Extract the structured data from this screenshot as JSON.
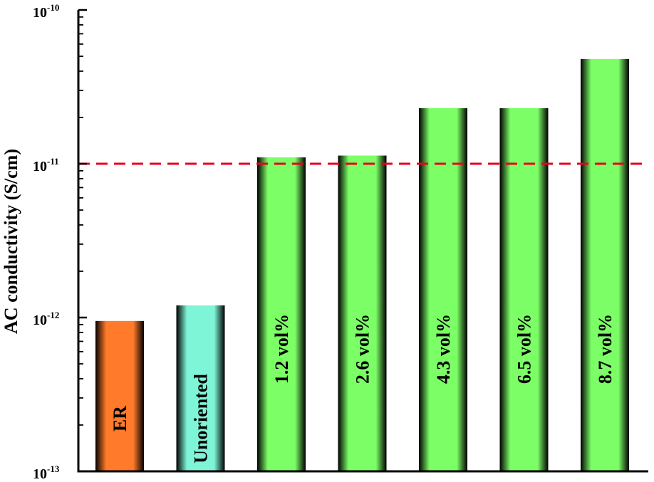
{
  "chart_data": {
    "type": "bar",
    "ylabel": "AC conductivity (S/cm)",
    "yscale": "log",
    "ylim": [
      1e-13,
      1e-10
    ],
    "y_ticks": [
      {
        "value": 1e-10,
        "base": "10",
        "exp": "-10"
      },
      {
        "value": 1e-11,
        "base": "10",
        "exp": "-11"
      },
      {
        "value": 1e-12,
        "base": "10",
        "exp": "-12"
      },
      {
        "value": 1e-13,
        "base": "10",
        "exp": "-13"
      }
    ],
    "categories": [
      "ER",
      "Unoriented",
      "1.2 vol%",
      "2.6 vol%",
      "4.3 vol%",
      "6.5 vol%",
      "8.7 vol%"
    ],
    "values": [
      9.5e-13,
      1.2e-12,
      1.1e-11,
      1.13e-11,
      2.3e-11,
      2.3e-11,
      4.8e-11
    ],
    "bar_colors": [
      "#ff7a2a",
      "#7ff5d8",
      "#7cff66",
      "#7cff66",
      "#7cff66",
      "#7cff66",
      "#7cff66"
    ],
    "reference_line": {
      "value": 1e-11,
      "color": "#e8001c",
      "style": "dashed"
    },
    "grid": false,
    "legend": "none"
  }
}
